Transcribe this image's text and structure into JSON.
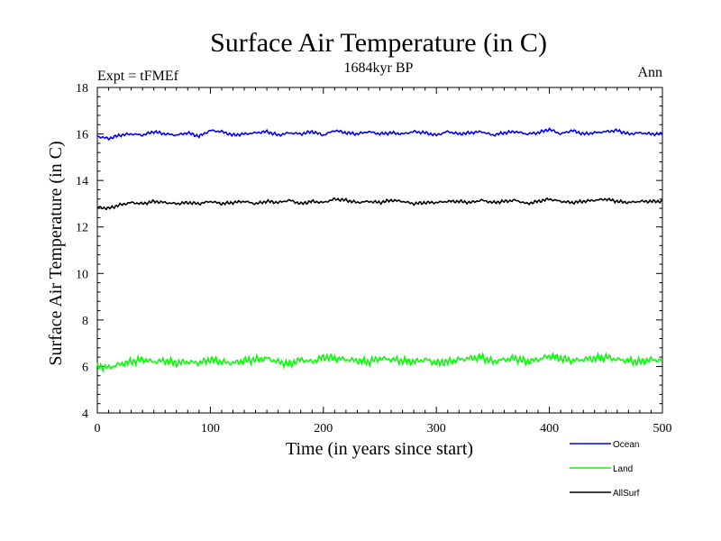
{
  "chart_data": {
    "type": "line",
    "title": "Surface Air Temperature (in C)",
    "subtitle": "1684kyr BP",
    "left_annotation": "Expt = tFMEf",
    "right_annotation": "Ann",
    "xlabel": "Time (in years since start)",
    "ylabel": "Surface Air Temperature (in C)",
    "xlim": [
      0,
      500
    ],
    "ylim": [
      4,
      18
    ],
    "xticks": [
      0,
      100,
      200,
      300,
      400,
      500
    ],
    "yticks": [
      4,
      6,
      8,
      10,
      12,
      14,
      16,
      18
    ],
    "x_sample_step": 10,
    "series": [
      {
        "name": "Ocean",
        "color": "#0000ff",
        "values": [
          15.9,
          15.8,
          15.95,
          16.0,
          15.95,
          16.1,
          16.0,
          15.95,
          16.05,
          15.9,
          16.15,
          16.1,
          15.95,
          16.0,
          16.05,
          16.1,
          15.95,
          16.05,
          16.0,
          16.1,
          15.95,
          16.15,
          16.05,
          16.0,
          16.1,
          16.0,
          16.05,
          16.0,
          16.1,
          16.05,
          15.95,
          16.1,
          16.0,
          16.05,
          16.1,
          15.95,
          16.05,
          16.1,
          16.0,
          16.05,
          16.2,
          16.0,
          16.15,
          16.0,
          16.05,
          16.1,
          16.15,
          16.0,
          16.05,
          16.0,
          16.0
        ]
      },
      {
        "name": "Land",
        "color": "#00ff00",
        "values": [
          6.0,
          5.95,
          6.1,
          6.2,
          6.3,
          6.2,
          6.25,
          6.15,
          6.2,
          6.15,
          6.3,
          6.2,
          6.15,
          6.25,
          6.3,
          6.35,
          6.2,
          6.1,
          6.3,
          6.2,
          6.4,
          6.35,
          6.3,
          6.25,
          6.2,
          6.35,
          6.3,
          6.25,
          6.2,
          6.3,
          6.15,
          6.2,
          6.3,
          6.35,
          6.4,
          6.2,
          6.3,
          6.35,
          6.2,
          6.3,
          6.45,
          6.35,
          6.25,
          6.3,
          6.35,
          6.4,
          6.3,
          6.25,
          6.2,
          6.3,
          6.25
        ]
      },
      {
        "name": "AllSurf",
        "color": "#000000",
        "values": [
          12.85,
          12.8,
          12.95,
          13.05,
          13.0,
          13.1,
          13.05,
          13.0,
          13.05,
          13.0,
          13.1,
          13.0,
          13.05,
          13.1,
          13.0,
          13.1,
          13.05,
          13.15,
          13.0,
          13.1,
          13.05,
          13.2,
          13.15,
          13.05,
          13.1,
          13.05,
          13.15,
          13.1,
          13.0,
          13.05,
          13.05,
          13.1,
          13.1,
          13.05,
          13.15,
          13.05,
          13.1,
          13.15,
          13.0,
          13.1,
          13.2,
          13.1,
          13.05,
          13.1,
          13.15,
          13.2,
          13.1,
          13.05,
          13.1,
          13.1,
          13.1
        ]
      }
    ]
  }
}
